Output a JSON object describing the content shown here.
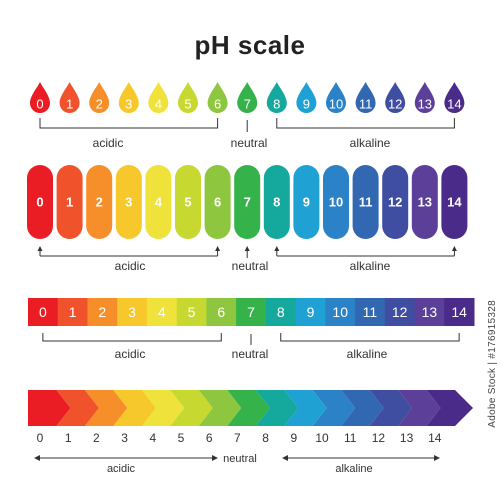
{
  "title": "pH scale",
  "scale_values": [
    "0",
    "1",
    "2",
    "3",
    "4",
    "5",
    "6",
    "7",
    "8",
    "9",
    "10",
    "11",
    "12",
    "13",
    "14"
  ],
  "group_labels": {
    "acidic": "acidic",
    "neutral": "neutral",
    "alkaline": "alkaline"
  },
  "colors": [
    "#ea1c24",
    "#f0522b",
    "#f68e2a",
    "#f6c82b",
    "#efe23a",
    "#c7d830",
    "#8ec63f",
    "#35b34a",
    "#14a99c",
    "#1fa2d3",
    "#2b82c7",
    "#3267b1",
    "#3f4ea1",
    "#5b3f99",
    "#4a2b8a"
  ],
  "watermark": "Adobe Stock | #176915328"
}
